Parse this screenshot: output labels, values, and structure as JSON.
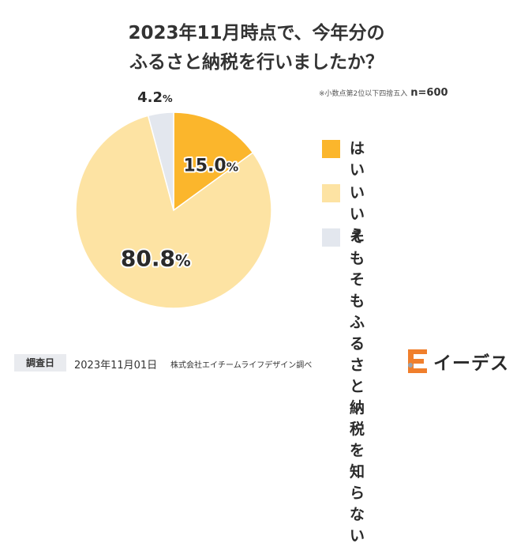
{
  "title_line1": "2023年11月時点で、今年分の",
  "title_line2": "ふるさと納税を行いましたか？",
  "note": "※小数点第2位以下四捨五入",
  "sample": "n=600",
  "chart_data": {
    "type": "pie",
    "title": "2023年11月時点で、今年分のふるさと納税を行いましたか？",
    "categories": [
      "はい",
      "いいえ",
      "そもそもふるさと納税を知らない"
    ],
    "values": [
      15.0,
      80.8,
      4.2
    ],
    "labels": [
      "15.0",
      "80.8",
      "4.2"
    ],
    "unit": "%",
    "colors": [
      "#fbb62c",
      "#fde3a3",
      "#e3e7ee"
    ],
    "legend_position": "right"
  },
  "legend": [
    {
      "label": "はい",
      "color": "#fbb62c"
    },
    {
      "label": "いいえ",
      "color": "#fde3a3"
    },
    {
      "label": "そもそも\nふるさと納税を\n知らない",
      "color": "#e3e7ee"
    }
  ],
  "footer": {
    "survey_label": "調査日",
    "survey_date": "2023年11月01日",
    "source": "株式会社エイチームライフデザイン調べ"
  },
  "logo": {
    "text": "イーデス",
    "icon": "e-logo-icon",
    "color": "#f07f2c"
  }
}
